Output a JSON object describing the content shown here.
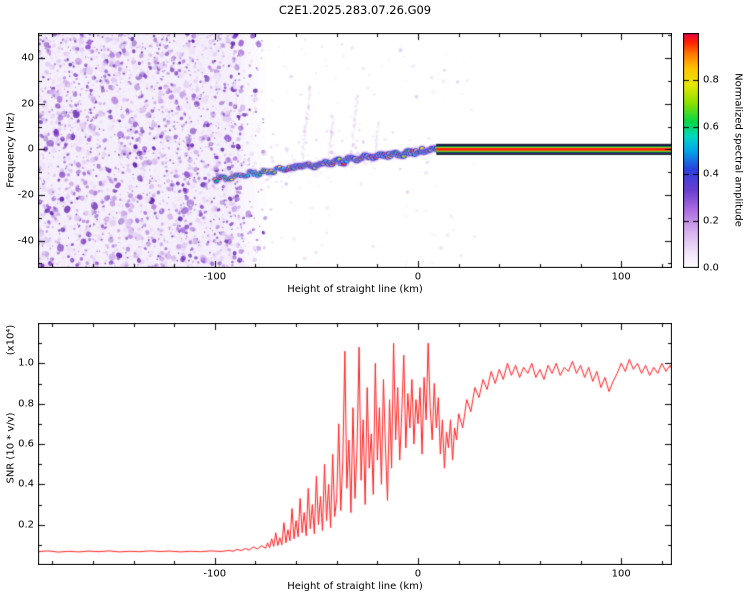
{
  "title": "C2E1.2025.283.07.26.G09",
  "colors": {
    "background": "#ffffff",
    "axis": "#000000",
    "snr_line": "#ff2222",
    "noise_purple": "#9257cf",
    "locked_line_core": "#ff1818",
    "locked_line_mid": "#00c838",
    "locked_line_edge": "#101060"
  },
  "chart_data": [
    {
      "type": "heatmap",
      "title": "C2E1.2025.283.07.26.G09",
      "xlabel": "Height of straight line (km)",
      "ylabel": "Frequency (Hz)",
      "xlim": [
        -187,
        125
      ],
      "ylim": [
        -52,
        51
      ],
      "xticks": [
        -100,
        0,
        100
      ],
      "yticks": [
        -40,
        -20,
        0,
        20,
        40
      ],
      "grid": false,
      "colorbar": {
        "label": "Normalized spectral amplitude",
        "ticks": [
          0.0,
          0.2,
          0.4,
          0.6,
          0.8
        ],
        "range": [
          0,
          1
        ],
        "stops": [
          [
            0.0,
            "#ffffff"
          ],
          [
            0.06,
            "#f3e6fa"
          ],
          [
            0.15,
            "#d9b3ef"
          ],
          [
            0.25,
            "#a96ae0"
          ],
          [
            0.33,
            "#6a3fd0"
          ],
          [
            0.42,
            "#2b3fe0"
          ],
          [
            0.5,
            "#00a8e8"
          ],
          [
            0.56,
            "#00d8c0"
          ],
          [
            0.62,
            "#00d84a"
          ],
          [
            0.7,
            "#8ae000"
          ],
          [
            0.78,
            "#e8e800"
          ],
          [
            0.85,
            "#ffc400"
          ],
          [
            0.91,
            "#ff7a00"
          ],
          [
            0.96,
            "#ff2000"
          ],
          [
            1.0,
            "#e8004a"
          ]
        ]
      },
      "noise_region": {
        "x_start": -187,
        "x_end": -86,
        "fade_end": -74
      },
      "signal_track": {
        "ridge": [
          [
            -100,
            -13
          ],
          [
            -97,
            -12.6
          ],
          [
            -94,
            -12.8
          ],
          [
            -91,
            -12
          ],
          [
            -88,
            -11.2
          ],
          [
            -85,
            -11.5
          ],
          [
            -82,
            -10.4
          ],
          [
            -79,
            -10.8
          ],
          [
            -76,
            -9.6
          ],
          [
            -73,
            -9.9
          ],
          [
            -70,
            -8.8
          ],
          [
            -67,
            -9.2
          ],
          [
            -64,
            -8.0
          ],
          [
            -61,
            -8.4
          ],
          [
            -58,
            -7.2
          ],
          [
            -55,
            -7.6
          ],
          [
            -52,
            -6.5
          ],
          [
            -49,
            -6.9
          ],
          [
            -46,
            -5.8
          ],
          [
            -43,
            -6.1
          ],
          [
            -40,
            -5.0
          ],
          [
            -37,
            -5.4
          ],
          [
            -34,
            -4.3
          ],
          [
            -31,
            -4.6
          ],
          [
            -28,
            -3.6
          ],
          [
            -25,
            -3.9
          ],
          [
            -22,
            -3.0
          ],
          [
            -19,
            -3.3
          ],
          [
            -16,
            -2.4
          ],
          [
            -13,
            -2.6
          ],
          [
            -10,
            -1.9
          ],
          [
            -7,
            -2.1
          ],
          [
            -4,
            -1.4
          ],
          [
            -1,
            -1.0
          ],
          [
            2,
            -0.7
          ],
          [
            5,
            -0.4
          ],
          [
            8,
            -0.1
          ],
          [
            10,
            0
          ]
        ],
        "amplitude_range": [
          0.3,
          1.0
        ]
      },
      "locked_line": {
        "y": 0,
        "x_start": 9,
        "x_end": 125
      },
      "streaks": [
        [
          -57,
          -5,
          28
        ],
        [
          -44,
          -4,
          16
        ],
        [
          -33,
          -3,
          24
        ],
        [
          -21,
          -2,
          12
        ]
      ]
    },
    {
      "type": "line",
      "xlabel": "Height of straight line (km)",
      "ylabel": "SNR (10 * v/v)",
      "y_scale_note": "(x10⁴)",
      "xlim": [
        -187,
        125
      ],
      "ylim": [
        0,
        1.2
      ],
      "xticks": [
        -100,
        0,
        100
      ],
      "yticks": [
        0.2,
        0.4,
        0.6,
        0.8,
        1.0
      ],
      "grid": false,
      "legend": null,
      "line_color": "#ff2222",
      "points": [
        [
          -187,
          0.066
        ],
        [
          -182,
          0.07
        ],
        [
          -177,
          0.064
        ],
        [
          -172,
          0.068
        ],
        [
          -167,
          0.065
        ],
        [
          -162,
          0.069
        ],
        [
          -157,
          0.066
        ],
        [
          -152,
          0.07
        ],
        [
          -147,
          0.065
        ],
        [
          -142,
          0.068
        ],
        [
          -137,
          0.066
        ],
        [
          -132,
          0.07
        ],
        [
          -127,
          0.067
        ],
        [
          -122,
          0.069
        ],
        [
          -117,
          0.065
        ],
        [
          -112,
          0.068
        ],
        [
          -107,
          0.066
        ],
        [
          -102,
          0.07
        ],
        [
          -97,
          0.067
        ],
        [
          -93,
          0.072
        ],
        [
          -91,
          0.068
        ],
        [
          -89,
          0.078
        ],
        [
          -87,
          0.071
        ],
        [
          -85,
          0.082
        ],
        [
          -83,
          0.074
        ],
        [
          -81,
          0.09
        ],
        [
          -79,
          0.079
        ],
        [
          -77,
          0.096
        ],
        [
          -75,
          0.083
        ],
        [
          -74,
          0.11
        ],
        [
          -73,
          0.086
        ],
        [
          -72,
          0.13
        ],
        [
          -71,
          0.092
        ],
        [
          -70,
          0.16
        ],
        [
          -69,
          0.096
        ],
        [
          -68,
          0.135
        ],
        [
          -67,
          0.1
        ],
        [
          -66,
          0.21
        ],
        [
          -65,
          0.11
        ],
        [
          -64,
          0.175
        ],
        [
          -63,
          0.12
        ],
        [
          -62,
          0.28
        ],
        [
          -61,
          0.13
        ],
        [
          -60,
          0.22
        ],
        [
          -59,
          0.14
        ],
        [
          -58,
          0.33
        ],
        [
          -57,
          0.16
        ],
        [
          -56,
          0.26
        ],
        [
          -55,
          0.145
        ],
        [
          -54,
          0.38
        ],
        [
          -53,
          0.18
        ],
        [
          -52,
          0.3
        ],
        [
          -51,
          0.155
        ],
        [
          -50,
          0.44
        ],
        [
          -49,
          0.2
        ],
        [
          -48,
          0.34
        ],
        [
          -47,
          0.17
        ],
        [
          -46,
          0.5
        ],
        [
          -45,
          0.22
        ],
        [
          -44,
          0.4
        ],
        [
          -43,
          0.185
        ],
        [
          -42,
          0.55
        ],
        [
          -41,
          0.24
        ],
        [
          -40,
          0.33
        ],
        [
          -39,
          0.7
        ],
        [
          -38,
          0.27
        ],
        [
          -37,
          0.52
        ],
        [
          -36,
          1.06
        ],
        [
          -35,
          0.38
        ],
        [
          -34,
          0.62
        ],
        [
          -33,
          0.26
        ],
        [
          -32,
          0.78
        ],
        [
          -31,
          0.33
        ],
        [
          -30,
          0.58
        ],
        [
          -29,
          1.08
        ],
        [
          -28,
          0.42
        ],
        [
          -27,
          0.72
        ],
        [
          -26,
          0.3
        ],
        [
          -25,
          0.88
        ],
        [
          -24,
          0.48
        ],
        [
          -23,
          0.65
        ],
        [
          -22,
          0.35
        ],
        [
          -21,
          1.0
        ],
        [
          -20,
          0.52
        ],
        [
          -19,
          0.78
        ],
        [
          -18,
          0.4
        ],
        [
          -17,
          0.92
        ],
        [
          -16,
          0.58
        ],
        [
          -15,
          0.32
        ],
        [
          -14,
          0.82
        ],
        [
          -13,
          0.48
        ],
        [
          -12,
          1.1
        ],
        [
          -11,
          0.62
        ],
        [
          -10,
          0.88
        ],
        [
          -9,
          0.52
        ],
        [
          -8,
          0.75
        ],
        [
          -7,
          1.04
        ],
        [
          -6,
          0.58
        ],
        [
          -5,
          0.85
        ],
        [
          -4,
          0.68
        ],
        [
          -3,
          0.92
        ],
        [
          -2,
          0.6
        ],
        [
          -1,
          0.82
        ],
        [
          0,
          0.7
        ],
        [
          1,
          0.88
        ],
        [
          2,
          0.55
        ],
        [
          3,
          0.93
        ],
        [
          4,
          0.72
        ],
        [
          5,
          1.1
        ],
        [
          6,
          0.78
        ],
        [
          7,
          0.62
        ],
        [
          8,
          0.9
        ],
        [
          9,
          0.68
        ],
        [
          10,
          0.83
        ],
        [
          11,
          0.55
        ],
        [
          12,
          0.72
        ],
        [
          13,
          0.48
        ],
        [
          14,
          0.66
        ],
        [
          15,
          0.58
        ],
        [
          16,
          0.72
        ],
        [
          17,
          0.52
        ],
        [
          18,
          0.68
        ],
        [
          19,
          0.62
        ],
        [
          20,
          0.75
        ],
        [
          22,
          0.68
        ],
        [
          24,
          0.82
        ],
        [
          26,
          0.76
        ],
        [
          28,
          0.88
        ],
        [
          30,
          0.83
        ],
        [
          32,
          0.92
        ],
        [
          34,
          0.87
        ],
        [
          36,
          0.96
        ],
        [
          38,
          0.9
        ],
        [
          40,
          0.97
        ],
        [
          42,
          0.92
        ],
        [
          44,
          1.0
        ],
        [
          46,
          0.94
        ],
        [
          48,
          0.99
        ],
        [
          50,
          0.93
        ],
        [
          52,
          0.98
        ],
        [
          54,
          0.95
        ],
        [
          56,
          1.0
        ],
        [
          58,
          0.93
        ],
        [
          60,
          0.97
        ],
        [
          62,
          0.92
        ],
        [
          64,
          0.99
        ],
        [
          66,
          0.95
        ],
        [
          68,
          1.0
        ],
        [
          70,
          0.94
        ],
        [
          72,
          0.98
        ],
        [
          74,
          0.96
        ],
        [
          76,
          1.01
        ],
        [
          78,
          0.95
        ],
        [
          80,
          0.99
        ],
        [
          82,
          0.93
        ],
        [
          84,
          0.98
        ],
        [
          86,
          0.91
        ],
        [
          88,
          0.96
        ],
        [
          90,
          0.88
        ],
        [
          92,
          0.93
        ],
        [
          94,
          0.86
        ],
        [
          96,
          0.91
        ],
        [
          98,
          0.95
        ],
        [
          100,
          1.0
        ],
        [
          102,
          0.96
        ],
        [
          104,
          1.02
        ],
        [
          106,
          0.97
        ],
        [
          108,
          1.0
        ],
        [
          110,
          0.95
        ],
        [
          112,
          0.99
        ],
        [
          114,
          0.94
        ],
        [
          116,
          0.98
        ],
        [
          118,
          0.95
        ],
        [
          120,
          1.0
        ],
        [
          122,
          0.96
        ],
        [
          124,
          0.99
        ],
        [
          125,
          0.97
        ]
      ]
    }
  ]
}
